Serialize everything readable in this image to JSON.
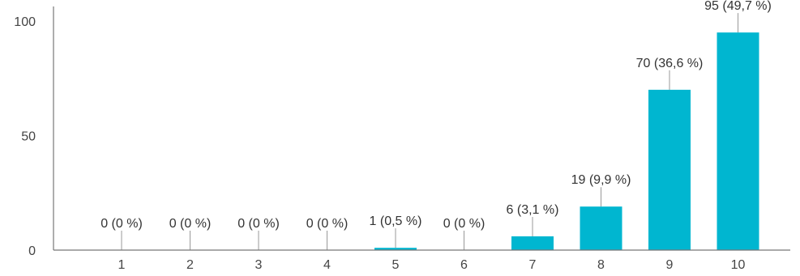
{
  "chart_data": {
    "type": "bar",
    "title": "",
    "xlabel": "",
    "ylabel": "",
    "categories": [
      "1",
      "2",
      "3",
      "4",
      "5",
      "6",
      "7",
      "8",
      "9",
      "10"
    ],
    "values": [
      0,
      0,
      0,
      0,
      1,
      0,
      6,
      19,
      70,
      95
    ],
    "data_labels": [
      "0 (0 %)",
      "0 (0 %)",
      "0 (0 %)",
      "0 (0 %)",
      "1 (0,5 %)",
      "0 (0 %)",
      "6 (3,1 %)",
      "19 (9,9 %)",
      "70 (36,6 %)",
      "95 (49,7 %)"
    ],
    "y_ticks": [
      0,
      50,
      100
    ],
    "ylim": [
      0,
      100
    ],
    "grid": false,
    "bar_color": "#00b6d0"
  }
}
